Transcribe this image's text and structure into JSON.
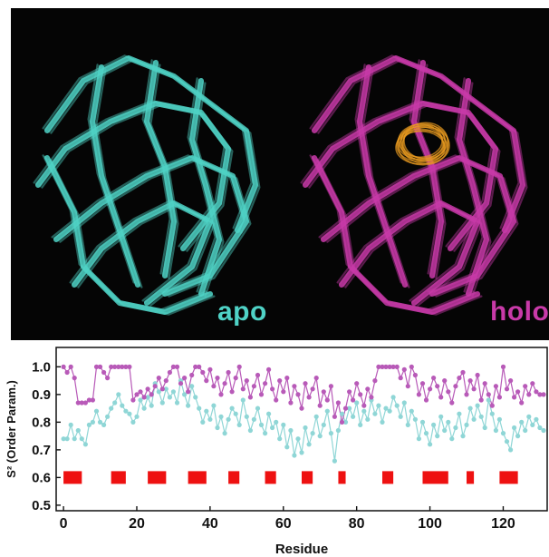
{
  "figure": {
    "top_panel": {
      "apo_label": "apo",
      "holo_label": "holo",
      "apo_color": "#4fd2c6",
      "holo_color": "#c83aa8",
      "ligand_color": "#e89a20",
      "background_color": "#050505"
    }
  },
  "chart_data": {
    "type": "scatter",
    "xlabel": "Residue",
    "ylabel": "S² (Order Param.)",
    "xlim": [
      -2,
      132
    ],
    "ylim": [
      0.48,
      1.07
    ],
    "xticks": [
      0,
      20,
      40,
      60,
      80,
      100,
      120
    ],
    "yticks": [
      0.5,
      0.6,
      0.7,
      0.8,
      0.9,
      1.0
    ],
    "ytick_labels": [
      "0.5",
      "0.6",
      "0.7",
      "0.8",
      "0.9",
      "1.0"
    ],
    "series": [
      {
        "color": "#8fd6d6",
        "x": [
          0,
          1,
          2,
          3,
          4,
          5,
          6,
          7,
          8,
          9,
          10,
          11,
          12,
          13,
          14,
          15,
          16,
          17,
          18,
          19,
          20,
          21,
          22,
          23,
          24,
          25,
          26,
          27,
          28,
          29,
          30,
          31,
          32,
          33,
          34,
          35,
          36,
          37,
          38,
          39,
          40,
          41,
          42,
          43,
          44,
          45,
          46,
          47,
          48,
          49,
          50,
          51,
          52,
          53,
          54,
          55,
          56,
          57,
          58,
          59,
          60,
          61,
          62,
          63,
          64,
          65,
          66,
          67,
          68,
          69,
          70,
          71,
          72,
          73,
          74,
          75,
          76,
          77,
          78,
          79,
          80,
          81,
          82,
          83,
          84,
          85,
          86,
          87,
          88,
          89,
          90,
          91,
          92,
          93,
          94,
          95,
          96,
          97,
          98,
          99,
          100,
          101,
          102,
          103,
          104,
          105,
          106,
          107,
          108,
          109,
          110,
          111,
          112,
          113,
          114,
          115,
          116,
          117,
          118,
          119,
          120,
          121,
          122,
          123,
          124,
          125,
          126,
          127,
          128,
          129,
          130,
          131
        ],
        "values": [
          0.74,
          0.74,
          0.79,
          0.74,
          0.77,
          0.74,
          0.72,
          0.79,
          0.8,
          0.84,
          0.8,
          0.79,
          0.82,
          0.85,
          0.87,
          0.9,
          0.86,
          0.84,
          0.83,
          0.8,
          0.82,
          0.88,
          0.85,
          0.89,
          0.86,
          0.94,
          0.91,
          0.87,
          0.92,
          0.89,
          0.91,
          0.87,
          0.95,
          0.9,
          0.86,
          0.93,
          0.89,
          0.85,
          0.8,
          0.84,
          0.81,
          0.86,
          0.78,
          0.82,
          0.76,
          0.81,
          0.85,
          0.83,
          0.79,
          0.88,
          0.82,
          0.77,
          0.81,
          0.85,
          0.79,
          0.76,
          0.83,
          0.78,
          0.8,
          0.74,
          0.79,
          0.71,
          0.77,
          0.68,
          0.74,
          0.69,
          0.78,
          0.72,
          0.76,
          0.82,
          0.75,
          0.79,
          0.84,
          0.76,
          0.66,
          0.77,
          0.83,
          0.8,
          0.85,
          0.82,
          0.87,
          0.79,
          0.84,
          0.81,
          0.88,
          0.83,
          0.86,
          0.8,
          0.85,
          0.84,
          0.89,
          0.86,
          0.82,
          0.87,
          0.79,
          0.84,
          0.81,
          0.74,
          0.8,
          0.76,
          0.72,
          0.79,
          0.75,
          0.82,
          0.77,
          0.8,
          0.74,
          0.78,
          0.83,
          0.75,
          0.79,
          0.85,
          0.81,
          0.86,
          0.82,
          0.78,
          0.88,
          0.83,
          0.77,
          0.81,
          0.76,
          0.73,
          0.7,
          0.78,
          0.75,
          0.8,
          0.77,
          0.82,
          0.79,
          0.81,
          0.78,
          0.77
        ]
      },
      {
        "color": "#b85ab8",
        "x": [
          0,
          1,
          2,
          3,
          4,
          5,
          6,
          7,
          8,
          9,
          10,
          11,
          12,
          13,
          14,
          15,
          16,
          17,
          18,
          19,
          20,
          21,
          22,
          23,
          24,
          25,
          26,
          27,
          28,
          29,
          30,
          31,
          32,
          33,
          34,
          35,
          36,
          37,
          38,
          39,
          40,
          41,
          42,
          43,
          44,
          45,
          46,
          47,
          48,
          49,
          50,
          51,
          52,
          53,
          54,
          55,
          56,
          57,
          58,
          59,
          60,
          61,
          62,
          63,
          64,
          65,
          66,
          67,
          68,
          69,
          70,
          71,
          72,
          73,
          74,
          75,
          76,
          77,
          78,
          79,
          80,
          81,
          82,
          83,
          84,
          85,
          86,
          87,
          88,
          89,
          90,
          91,
          92,
          93,
          94,
          95,
          96,
          97,
          98,
          99,
          100,
          101,
          102,
          103,
          104,
          105,
          106,
          107,
          108,
          109,
          110,
          111,
          112,
          113,
          114,
          115,
          116,
          117,
          118,
          119,
          120,
          121,
          122,
          123,
          124,
          125,
          126,
          127,
          128,
          129,
          130,
          131
        ],
        "values": [
          1.0,
          0.98,
          1.0,
          0.96,
          0.87,
          0.87,
          0.87,
          0.88,
          0.88,
          1.0,
          1.0,
          0.98,
          0.96,
          1.0,
          1.0,
          1.0,
          1.0,
          1.0,
          1.0,
          0.88,
          0.9,
          0.91,
          0.89,
          0.92,
          0.9,
          0.93,
          0.96,
          0.92,
          0.95,
          0.98,
          1.0,
          1.0,
          0.94,
          0.96,
          0.91,
          0.97,
          1.0,
          1.0,
          0.98,
          0.95,
          0.99,
          0.93,
          0.96,
          0.9,
          0.94,
          0.98,
          0.91,
          0.96,
          1.0,
          0.92,
          0.95,
          0.89,
          0.93,
          0.97,
          0.9,
          0.94,
          0.99,
          0.92,
          0.88,
          0.95,
          0.91,
          0.96,
          0.87,
          0.93,
          0.9,
          0.85,
          0.94,
          0.89,
          0.92,
          0.96,
          0.86,
          0.91,
          0.88,
          0.93,
          0.82,
          0.87,
          0.8,
          0.85,
          0.91,
          0.88,
          0.94,
          0.9,
          0.86,
          0.92,
          0.89,
          0.95,
          1.0,
          1.0,
          1.0,
          1.0,
          1.0,
          1.0,
          0.96,
          0.99,
          0.93,
          1.0,
          0.97,
          0.9,
          0.94,
          0.88,
          0.92,
          0.96,
          0.93,
          0.89,
          0.95,
          0.91,
          0.87,
          0.93,
          0.96,
          0.98,
          0.9,
          0.95,
          0.92,
          0.97,
          0.88,
          0.94,
          0.9,
          0.86,
          0.93,
          0.89,
          1.0,
          0.92,
          0.95,
          0.89,
          0.91,
          0.87,
          0.93,
          0.9,
          0.94,
          0.91,
          0.9,
          0.9
        ]
      }
    ],
    "secondary_structure": {
      "color": "#ee1111",
      "y": 0.6,
      "segments": [
        [
          0,
          5
        ],
        [
          13,
          17
        ],
        [
          23,
          28
        ],
        [
          34,
          39
        ],
        [
          45,
          48
        ],
        [
          55,
          58
        ],
        [
          65,
          68
        ],
        [
          75,
          77
        ],
        [
          87,
          90
        ],
        [
          98,
          105
        ],
        [
          110,
          112
        ],
        [
          119,
          124
        ]
      ]
    },
    "grid": false
  }
}
